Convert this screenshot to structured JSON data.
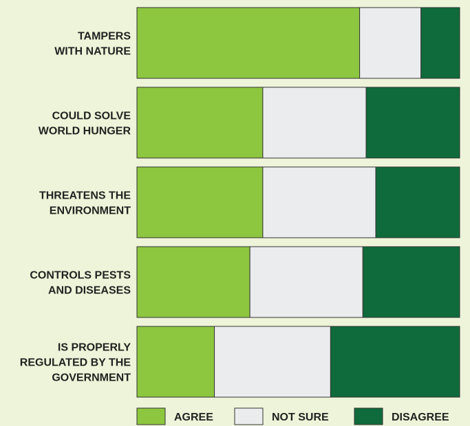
{
  "chart_data": {
    "type": "bar",
    "orientation": "horizontal",
    "stacked": true,
    "categories": [
      [
        "TAMPERS",
        "WITH NATURE"
      ],
      [
        "COULD SOLVE",
        "WORLD HUNGER"
      ],
      [
        "THREATENS THE",
        "ENVIRONMENT"
      ],
      [
        "CONTROLS PESTS",
        "AND DISEASES"
      ],
      [
        "IS PROPERLY",
        "REGULATED BY THE",
        "GOVERNMENT"
      ]
    ],
    "series": [
      {
        "name": "AGREE",
        "color": "#8dc63f",
        "values": [
          69,
          39,
          39,
          35,
          24
        ]
      },
      {
        "name": "NOT SURE",
        "color": "#ebeced",
        "values": [
          19,
          32,
          35,
          35,
          36
        ]
      },
      {
        "name": "DISAGREE",
        "color": "#0f6b3b",
        "values": [
          12,
          29,
          26,
          30,
          40
        ]
      }
    ],
    "xlim": [
      0,
      100
    ],
    "grid": false,
    "legend_position": "bottom"
  }
}
